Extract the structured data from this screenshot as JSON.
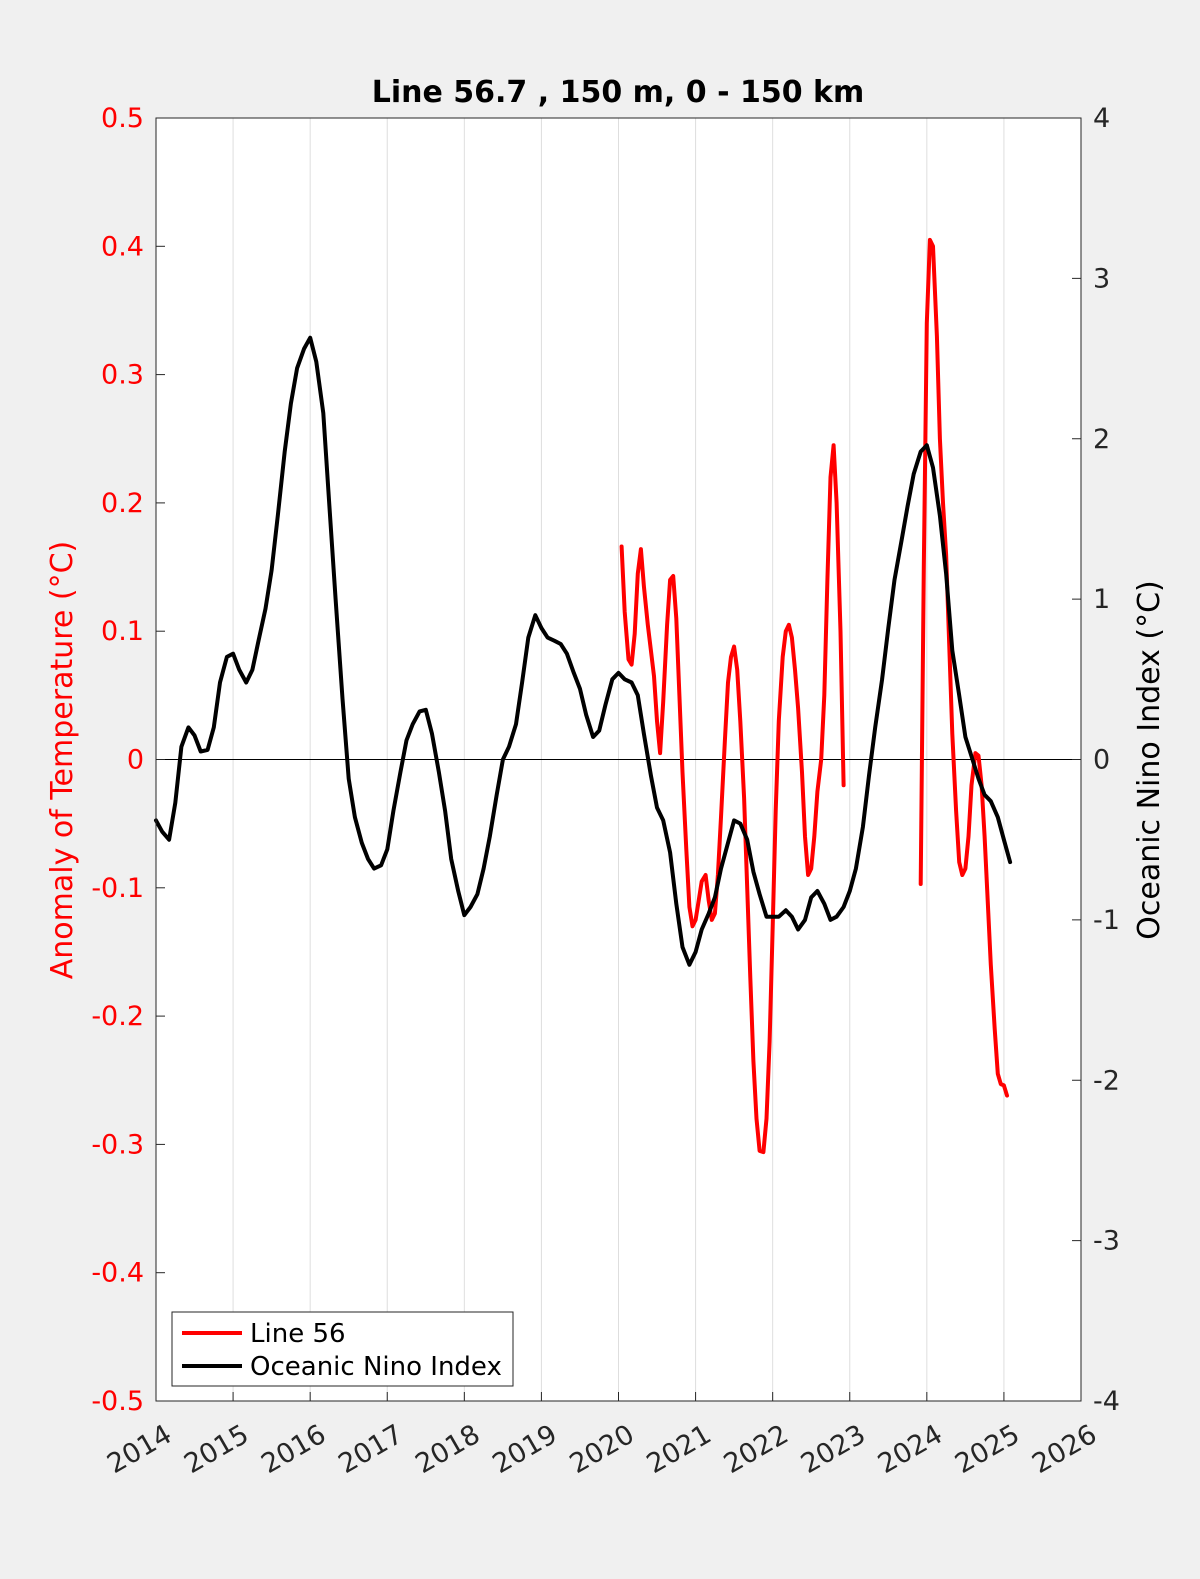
{
  "chart_data": {
    "type": "line",
    "title": "Line 56.7 , 150 m, 0 - 150 km",
    "xlabel": "",
    "ylabel_left": "Anomaly of Temperature (°C)",
    "ylabel_right": "Oceanic Nino Index (°C)",
    "xlim": [
      2014,
      2026
    ],
    "ylim_left": [
      -0.5,
      0.5
    ],
    "ylim_right": [
      -4,
      4
    ],
    "xticks": [
      2014,
      2015,
      2016,
      2017,
      2018,
      2019,
      2020,
      2021,
      2022,
      2023,
      2024,
      2025,
      2026
    ],
    "xtick_labels": [
      "2014",
      "2015",
      "2016",
      "2017",
      "2018",
      "2019",
      "2020",
      "2021",
      "2022",
      "2023",
      "2024",
      "2025",
      "2026"
    ],
    "yticks_left": [
      -0.5,
      -0.4,
      -0.3,
      -0.2,
      -0.1,
      0,
      0.1,
      0.2,
      0.3,
      0.4,
      0.5
    ],
    "ytick_labels_left": [
      "-0.5",
      "-0.4",
      "-0.3",
      "-0.2",
      "-0.1",
      "0",
      "0.1",
      "0.2",
      "0.3",
      "0.4",
      "0.5"
    ],
    "yticks_right": [
      -4,
      -3,
      -2,
      -1,
      0,
      1,
      2,
      3,
      4
    ],
    "ytick_labels_right": [
      "-4",
      "-3",
      "-2",
      "-1",
      "0",
      "1",
      "2",
      "3",
      "4"
    ],
    "grid": "x-only",
    "zero_line": true,
    "legend": {
      "placement": "bottom-left",
      "entries": [
        {
          "label": "Line 56",
          "color": "#ff0000"
        },
        {
          "label": "Oceanic Nino Index",
          "color": "#000000"
        }
      ]
    },
    "series": [
      {
        "name": "Line 56",
        "axis": "left",
        "color": "#ff0000",
        "segments": [
          [
            [
              2020.04,
              0.166
            ],
            [
              2020.08,
              0.115
            ],
            [
              2020.13,
              0.078
            ],
            [
              2020.17,
              0.074
            ],
            [
              2020.21,
              0.098
            ],
            [
              2020.25,
              0.145
            ],
            [
              2020.29,
              0.164
            ],
            [
              2020.33,
              0.135
            ],
            [
              2020.38,
              0.105
            ],
            [
              2020.42,
              0.085
            ],
            [
              2020.46,
              0.065
            ],
            [
              2020.5,
              0.03
            ],
            [
              2020.54,
              0.005
            ],
            [
              2020.58,
              0.045
            ],
            [
              2020.63,
              0.105
            ],
            [
              2020.67,
              0.14
            ],
            [
              2020.71,
              0.143
            ],
            [
              2020.75,
              0.11
            ],
            [
              2020.79,
              0.05
            ],
            [
              2020.83,
              -0.01
            ],
            [
              2020.88,
              -0.07
            ],
            [
              2020.92,
              -0.115
            ],
            [
              2020.96,
              -0.13
            ],
            [
              2021.0,
              -0.125
            ],
            [
              2021.04,
              -0.11
            ],
            [
              2021.08,
              -0.095
            ],
            [
              2021.13,
              -0.09
            ],
            [
              2021.17,
              -0.11
            ],
            [
              2021.21,
              -0.125
            ],
            [
              2021.25,
              -0.12
            ],
            [
              2021.29,
              -0.09
            ],
            [
              2021.33,
              -0.045
            ],
            [
              2021.38,
              0.015
            ],
            [
              2021.42,
              0.06
            ],
            [
              2021.46,
              0.08
            ],
            [
              2021.5,
              0.088
            ],
            [
              2021.54,
              0.07
            ],
            [
              2021.58,
              0.03
            ],
            [
              2021.63,
              -0.03
            ],
            [
              2021.67,
              -0.1
            ],
            [
              2021.71,
              -0.17
            ],
            [
              2021.75,
              -0.235
            ],
            [
              2021.79,
              -0.28
            ],
            [
              2021.83,
              -0.305
            ],
            [
              2021.88,
              -0.306
            ],
            [
              2021.92,
              -0.28
            ],
            [
              2021.96,
              -0.22
            ],
            [
              2022.0,
              -0.13
            ],
            [
              2022.04,
              -0.04
            ],
            [
              2022.08,
              0.03
            ],
            [
              2022.13,
              0.08
            ],
            [
              2022.17,
              0.1
            ],
            [
              2022.21,
              0.105
            ],
            [
              2022.25,
              0.095
            ],
            [
              2022.29,
              0.07
            ],
            [
              2022.33,
              0.04
            ],
            [
              2022.38,
              -0.01
            ],
            [
              2022.42,
              -0.06
            ],
            [
              2022.46,
              -0.09
            ],
            [
              2022.5,
              -0.085
            ],
            [
              2022.54,
              -0.06
            ],
            [
              2022.58,
              -0.025
            ],
            [
              2022.63,
              0.0
            ],
            [
              2022.67,
              0.05
            ],
            [
              2022.71,
              0.14
            ],
            [
              2022.75,
              0.22
            ],
            [
              2022.79,
              0.245
            ],
            [
              2022.83,
              0.2
            ],
            [
              2022.88,
              0.1
            ],
            [
              2022.92,
              -0.02
            ]
          ],
          [
            [
              2023.92,
              -0.097
            ],
            [
              2023.96,
              0.15
            ],
            [
              2024.0,
              0.34
            ],
            [
              2024.04,
              0.405
            ],
            [
              2024.08,
              0.4
            ],
            [
              2024.13,
              0.33
            ],
            [
              2024.17,
              0.25
            ],
            [
              2024.21,
              0.2
            ],
            [
              2024.25,
              0.16
            ],
            [
              2024.29,
              0.09
            ],
            [
              2024.33,
              0.02
            ],
            [
              2024.38,
              -0.04
            ],
            [
              2024.42,
              -0.08
            ],
            [
              2024.46,
              -0.09
            ],
            [
              2024.5,
              -0.085
            ],
            [
              2024.54,
              -0.06
            ],
            [
              2024.58,
              -0.02
            ],
            [
              2024.63,
              0.005
            ],
            [
              2024.67,
              0.003
            ],
            [
              2024.71,
              -0.02
            ],
            [
              2024.75,
              -0.06
            ],
            [
              2024.79,
              -0.11
            ],
            [
              2024.83,
              -0.16
            ],
            [
              2024.88,
              -0.21
            ],
            [
              2024.92,
              -0.245
            ],
            [
              2024.96,
              -0.253
            ],
            [
              2025.0,
              -0.254
            ],
            [
              2025.04,
              -0.262
            ]
          ]
        ]
      },
      {
        "name": "Oceanic Nino Index",
        "axis": "right",
        "color": "#000000",
        "segments": [
          [
            [
              2014.0,
              -0.38
            ],
            [
              2014.08,
              -0.45
            ],
            [
              2014.17,
              -0.5
            ],
            [
              2014.25,
              -0.27
            ],
            [
              2014.33,
              0.08
            ],
            [
              2014.42,
              0.2
            ],
            [
              2014.5,
              0.15
            ],
            [
              2014.58,
              0.05
            ],
            [
              2014.67,
              0.06
            ],
            [
              2014.75,
              0.2
            ],
            [
              2014.83,
              0.48
            ],
            [
              2014.92,
              0.64
            ],
            [
              2015.0,
              0.66
            ],
            [
              2015.08,
              0.56
            ],
            [
              2015.17,
              0.48
            ],
            [
              2015.25,
              0.56
            ],
            [
              2015.33,
              0.74
            ],
            [
              2015.42,
              0.94
            ],
            [
              2015.5,
              1.18
            ],
            [
              2015.58,
              1.52
            ],
            [
              2015.67,
              1.92
            ],
            [
              2015.75,
              2.22
            ],
            [
              2015.83,
              2.44
            ],
            [
              2015.92,
              2.56
            ],
            [
              2016.0,
              2.63
            ],
            [
              2016.08,
              2.48
            ],
            [
              2016.17,
              2.16
            ],
            [
              2016.25,
              1.58
            ],
            [
              2016.33,
              1.0
            ],
            [
              2016.42,
              0.38
            ],
            [
              2016.5,
              -0.12
            ],
            [
              2016.58,
              -0.36
            ],
            [
              2016.67,
              -0.52
            ],
            [
              2016.75,
              -0.62
            ],
            [
              2016.83,
              -0.68
            ],
            [
              2016.92,
              -0.66
            ],
            [
              2017.0,
              -0.56
            ],
            [
              2017.08,
              -0.32
            ],
            [
              2017.17,
              -0.08
            ],
            [
              2017.25,
              0.12
            ],
            [
              2017.33,
              0.22
            ],
            [
              2017.42,
              0.3
            ],
            [
              2017.5,
              0.31
            ],
            [
              2017.58,
              0.16
            ],
            [
              2017.67,
              -0.08
            ],
            [
              2017.75,
              -0.32
            ],
            [
              2017.83,
              -0.62
            ],
            [
              2017.92,
              -0.82
            ],
            [
              2018.0,
              -0.97
            ],
            [
              2018.08,
              -0.92
            ],
            [
              2018.17,
              -0.84
            ],
            [
              2018.25,
              -0.68
            ],
            [
              2018.33,
              -0.48
            ],
            [
              2018.42,
              -0.22
            ],
            [
              2018.5,
              0.0
            ],
            [
              2018.58,
              0.08
            ],
            [
              2018.67,
              0.22
            ],
            [
              2018.75,
              0.48
            ],
            [
              2018.83,
              0.76
            ],
            [
              2018.92,
              0.9
            ],
            [
              2019.0,
              0.82
            ],
            [
              2019.08,
              0.76
            ],
            [
              2019.17,
              0.74
            ],
            [
              2019.25,
              0.72
            ],
            [
              2019.33,
              0.66
            ],
            [
              2019.42,
              0.54
            ],
            [
              2019.5,
              0.44
            ],
            [
              2019.58,
              0.28
            ],
            [
              2019.67,
              0.14
            ],
            [
              2019.75,
              0.18
            ],
            [
              2019.83,
              0.34
            ],
            [
              2019.92,
              0.5
            ],
            [
              2020.0,
              0.54
            ],
            [
              2020.08,
              0.5
            ],
            [
              2020.17,
              0.48
            ],
            [
              2020.25,
              0.4
            ],
            [
              2020.33,
              0.16
            ],
            [
              2020.42,
              -0.1
            ],
            [
              2020.5,
              -0.3
            ],
            [
              2020.58,
              -0.38
            ],
            [
              2020.67,
              -0.58
            ],
            [
              2020.75,
              -0.9
            ],
            [
              2020.83,
              -1.17
            ],
            [
              2020.92,
              -1.28
            ],
            [
              2021.0,
              -1.2
            ],
            [
              2021.08,
              -1.06
            ],
            [
              2021.17,
              -0.96
            ],
            [
              2021.25,
              -0.86
            ],
            [
              2021.33,
              -0.68
            ],
            [
              2021.42,
              -0.52
            ],
            [
              2021.5,
              -0.38
            ],
            [
              2021.58,
              -0.4
            ],
            [
              2021.67,
              -0.5
            ],
            [
              2021.75,
              -0.7
            ],
            [
              2021.83,
              -0.84
            ],
            [
              2021.92,
              -0.98
            ],
            [
              2022.0,
              -0.98
            ],
            [
              2022.08,
              -0.98
            ],
            [
              2022.17,
              -0.94
            ],
            [
              2022.25,
              -0.98
            ],
            [
              2022.33,
              -1.06
            ],
            [
              2022.42,
              -1.0
            ],
            [
              2022.5,
              -0.86
            ],
            [
              2022.58,
              -0.82
            ],
            [
              2022.67,
              -0.9
            ],
            [
              2022.75,
              -1.0
            ],
            [
              2022.83,
              -0.98
            ],
            [
              2022.92,
              -0.92
            ],
            [
              2023.0,
              -0.82
            ],
            [
              2023.08,
              -0.68
            ],
            [
              2023.17,
              -0.42
            ],
            [
              2023.25,
              -0.1
            ],
            [
              2023.33,
              0.2
            ],
            [
              2023.42,
              0.5
            ],
            [
              2023.5,
              0.82
            ],
            [
              2023.58,
              1.12
            ],
            [
              2023.67,
              1.36
            ],
            [
              2023.75,
              1.58
            ],
            [
              2023.83,
              1.78
            ],
            [
              2023.92,
              1.92
            ],
            [
              2024.0,
              1.96
            ],
            [
              2024.08,
              1.82
            ],
            [
              2024.17,
              1.52
            ],
            [
              2024.25,
              1.16
            ],
            [
              2024.33,
              0.68
            ],
            [
              2024.42,
              0.4
            ],
            [
              2024.5,
              0.14
            ],
            [
              2024.58,
              0.02
            ],
            [
              2024.67,
              -0.12
            ],
            [
              2024.75,
              -0.22
            ],
            [
              2024.83,
              -0.26
            ],
            [
              2024.92,
              -0.36
            ],
            [
              2025.0,
              -0.5
            ],
            [
              2025.08,
              -0.64
            ]
          ]
        ]
      }
    ]
  }
}
